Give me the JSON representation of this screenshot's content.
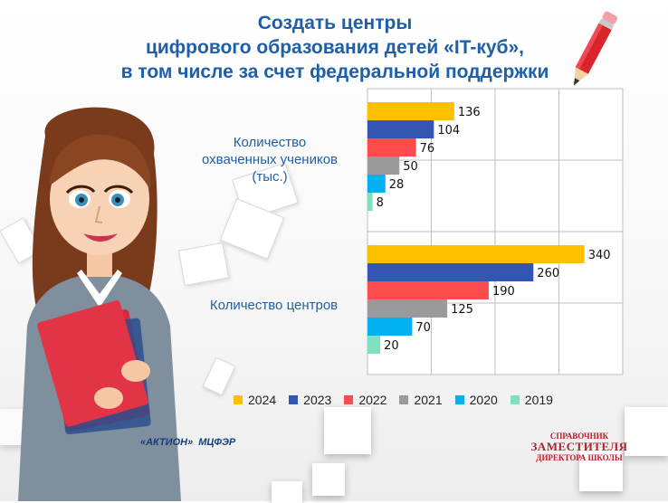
{
  "title_lines": [
    "Создать центры",
    "цифрового образования детей «IT-куб»,",
    "в том числе за счет федеральной поддержки"
  ],
  "chart_data": {
    "type": "bar",
    "orientation": "horizontal",
    "categories": [
      "Количество охваченных учеников (тыс.)",
      "Количество центров"
    ],
    "series": [
      {
        "name": "2024",
        "color": "#FFC000",
        "values": [
          136,
          340
        ]
      },
      {
        "name": "2023",
        "color": "#3356B3",
        "values": [
          104,
          260
        ]
      },
      {
        "name": "2022",
        "color": "#FF4B4B",
        "values": [
          76,
          190
        ]
      },
      {
        "name": "2021",
        "color": "#9A9A9A",
        "values": [
          50,
          125
        ]
      },
      {
        "name": "2020",
        "color": "#00B0F0",
        "values": [
          28,
          70
        ]
      },
      {
        "name": "2019",
        "color": "#7FE0C2",
        "values": [
          8,
          20
        ]
      }
    ],
    "xlim": [
      0,
      400
    ],
    "grid": true,
    "legend": "bottom"
  },
  "category_labels": {
    "students": [
      "Количество",
      "охваченных учеников",
      "(тыс.)"
    ],
    "centers": "Количество центров"
  },
  "logos": {
    "left_1": "«АКТИОН»",
    "left_2": "МЦФЭР",
    "right_1": "СПРАВОЧНИК",
    "right_2": "ЗАМЕСТИТЕЛЯ",
    "right_3": "ДИРЕКТОРА ШКОЛЫ"
  },
  "icons": {
    "pencil": "pencil-icon",
    "teacher": "teacher-illustration"
  }
}
